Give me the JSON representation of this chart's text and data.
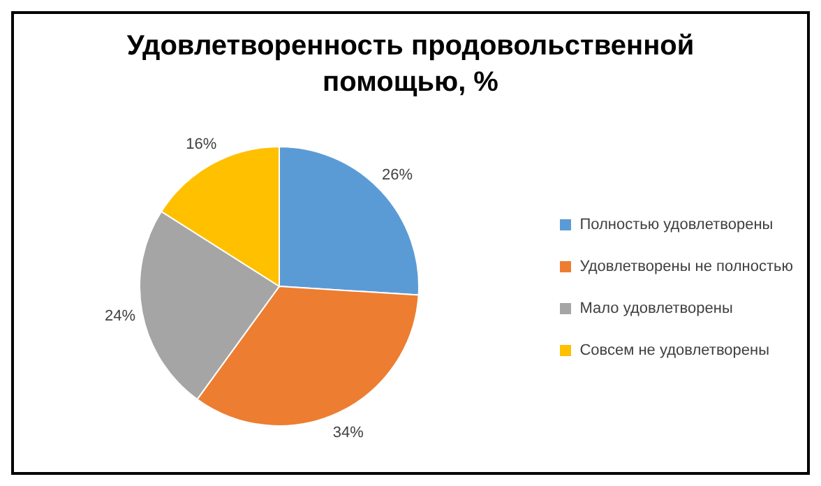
{
  "chart_data": {
    "type": "pie",
    "title": "Удовлетворенность продовольственной помощью, %",
    "categories": [
      "Полностью удовлетворены",
      "Удовлетворены не полностью",
      "Мало удовлетворены",
      "Совсем не удовлетворены"
    ],
    "values": [
      26,
      34,
      24,
      16
    ],
    "colors": [
      "#5b9bd5",
      "#ed7d31",
      "#a5a5a5",
      "#ffc000"
    ],
    "value_labels": [
      "26%",
      "34%",
      "24%",
      "16%"
    ],
    "legend": "right"
  }
}
